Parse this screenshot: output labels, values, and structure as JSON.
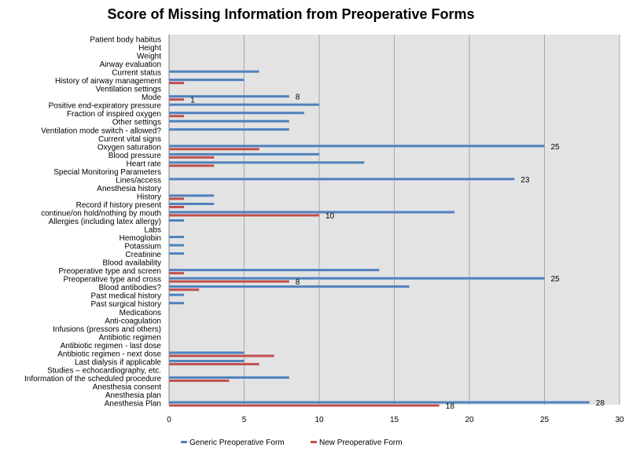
{
  "chart_data": {
    "type": "bar",
    "orientation": "horizontal",
    "title": "Score of Missing Information from Preoperative Forms",
    "xlabel": "",
    "ylabel": "",
    "xlim": [
      0,
      30
    ],
    "xticks": [
      0,
      5,
      10,
      15,
      20,
      25,
      30
    ],
    "grid": true,
    "legend_position": "bottom",
    "categories": [
      "Patient body habitus",
      "Height",
      "Weight",
      "Airway evaluation",
      "Current status",
      "History of airway management",
      "Ventilation settings",
      "Mode",
      "Positive end-expiratory pressure",
      "Fraction of inspired oxygen",
      "Other settings",
      "Ventilation mode switch - allowed?",
      "Current vital signs",
      "Oxygen saturation",
      "Blood pressure",
      "Heart rate",
      "Special Monitoring Parameters",
      "Lines/access",
      "Anesthesia history",
      "History",
      "Record if history present",
      "continue/on hold/nothing by mouth",
      "Allergies (including latex allergy)",
      "Labs",
      "Hemoglobin",
      "Potassium",
      "Creatinine",
      "Blood availability",
      "Preoperative type and screen",
      "Preoperative type and cross",
      "Blood antibodies?",
      "Past medical history",
      "Past surgical history",
      "Medications",
      "Anti-coagulation",
      "Infusions (pressors and others)",
      "Antibiotic regimen",
      "Antibiotic regimen - last dose",
      "Antibiotic regimen - next dose",
      "Last dialysis if applicable",
      "Studies – echocardiography, etc.",
      "Information of the scheduled procedure",
      "Anesthesia consent",
      "Anesthesia plan",
      "Anesthesia Plan"
    ],
    "series": [
      {
        "name": "Generic Preoperative Form",
        "color": "#4f81bd",
        "values": [
          0,
          0,
          0,
          0,
          6,
          5,
          0,
          8,
          10,
          9,
          8,
          8,
          0,
          25,
          10,
          13,
          0,
          23,
          0,
          3,
          3,
          19,
          1,
          0,
          1,
          1,
          1,
          0,
          14,
          25,
          16,
          1,
          1,
          0,
          0,
          0,
          0,
          0,
          5,
          5,
          0,
          8,
          0,
          0,
          28
        ]
      },
      {
        "name": "New Preoperative Form",
        "color": "#c0504d",
        "values": [
          0,
          0,
          0,
          0,
          0,
          1,
          0,
          1,
          0,
          1,
          0,
          0,
          0,
          6,
          3,
          3,
          0,
          0,
          0,
          1,
          1,
          10,
          0,
          0,
          0,
          0,
          0,
          0,
          1,
          8,
          2,
          0,
          0,
          0,
          0,
          0,
          0,
          0,
          7,
          6,
          0,
          4,
          0,
          0,
          18
        ]
      }
    ],
    "data_labels": [
      {
        "category": "Mode",
        "series": "Generic Preoperative Form",
        "text": "8"
      },
      {
        "category": "Mode",
        "series": "New Preoperative Form",
        "text": "1"
      },
      {
        "category": "Oxygen saturation",
        "series": "Generic Preoperative Form",
        "text": "25"
      },
      {
        "category": "Lines/access",
        "series": "Generic Preoperative Form",
        "text": "23"
      },
      {
        "category": "continue/on hold/nothing by mouth",
        "series": "New Preoperative Form",
        "text": "10"
      },
      {
        "category": "Preoperative type and cross",
        "series": "Generic Preoperative Form",
        "text": "25"
      },
      {
        "category": "Preoperative type and cross",
        "series": "New Preoperative Form",
        "text": "8"
      },
      {
        "category": "Anesthesia Plan",
        "series": "Generic Preoperative Form",
        "text": "28"
      },
      {
        "category": "Anesthesia Plan",
        "series": "New Preoperative Form",
        "text": "18"
      }
    ]
  }
}
